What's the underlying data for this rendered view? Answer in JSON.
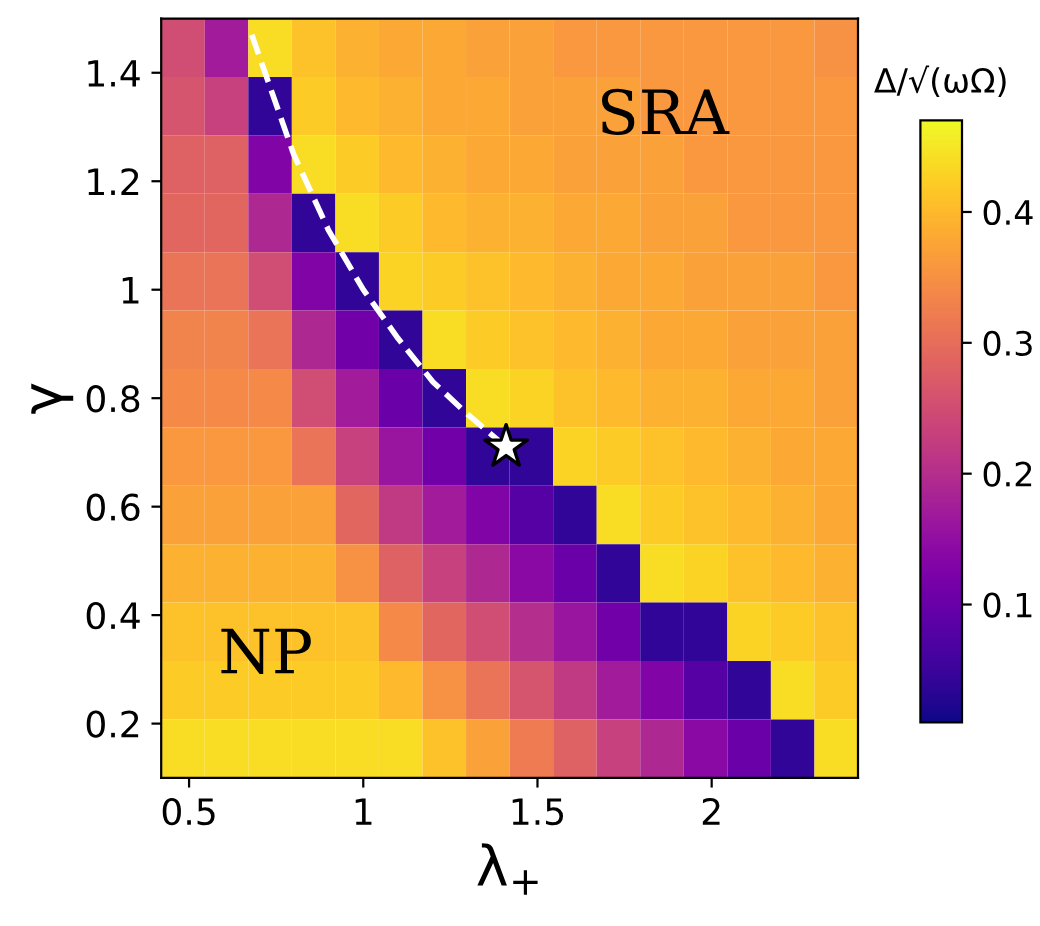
{
  "chart_data": {
    "type": "heatmap",
    "xlabel": "λ$_{+}$",
    "ylabel": "γ",
    "clabel": "Δ/√(ωΩ)",
    "xlim": [
      0.42,
      2.42
    ],
    "xticks": [
      0.5,
      1,
      1.5,
      2
    ],
    "ylim": [
      0.1,
      1.5
    ],
    "yticks": [
      0.2,
      0.4,
      0.6,
      0.8,
      1,
      1.2,
      1.4
    ],
    "clim": [
      0.01,
      0.47
    ],
    "cticks": [
      0.1,
      0.2,
      0.3,
      0.4
    ],
    "cells": [
      [
        0.25,
        0.17,
        0.44,
        0.41,
        0.39,
        0.38,
        0.38,
        0.37,
        0.37,
        0.36,
        0.36,
        0.36,
        0.36,
        0.36,
        0.36,
        0.35
      ],
      [
        0.26,
        0.23,
        0.04,
        0.42,
        0.4,
        0.39,
        0.38,
        0.38,
        0.37,
        0.37,
        0.37,
        0.36,
        0.36,
        0.36,
        0.36,
        0.36
      ],
      [
        0.28,
        0.28,
        0.13,
        0.44,
        0.42,
        0.4,
        0.39,
        0.38,
        0.38,
        0.37,
        0.37,
        0.37,
        0.36,
        0.36,
        0.36,
        0.36
      ],
      [
        0.29,
        0.29,
        0.19,
        0.04,
        0.44,
        0.42,
        0.4,
        0.39,
        0.39,
        0.38,
        0.38,
        0.37,
        0.37,
        0.36,
        0.36,
        0.36
      ],
      [
        0.31,
        0.31,
        0.25,
        0.13,
        0.04,
        0.43,
        0.42,
        0.41,
        0.4,
        0.39,
        0.38,
        0.38,
        0.37,
        0.37,
        0.37,
        0.36
      ],
      [
        0.33,
        0.33,
        0.31,
        0.19,
        0.11,
        0.04,
        0.44,
        0.42,
        0.41,
        0.4,
        0.39,
        0.38,
        0.38,
        0.37,
        0.37,
        0.37
      ],
      [
        0.34,
        0.34,
        0.34,
        0.25,
        0.17,
        0.1,
        0.04,
        0.44,
        0.43,
        0.41,
        0.4,
        0.39,
        0.39,
        0.38,
        0.38,
        0.37
      ],
      [
        0.36,
        0.36,
        0.36,
        0.31,
        0.23,
        0.16,
        0.11,
        0.04,
        0.04,
        0.43,
        0.42,
        0.41,
        0.4,
        0.39,
        0.38,
        0.38
      ],
      [
        0.37,
        0.37,
        0.37,
        0.37,
        0.29,
        0.22,
        0.17,
        0.13,
        0.08,
        0.04,
        0.44,
        0.42,
        0.41,
        0.4,
        0.39,
        0.38
      ],
      [
        0.39,
        0.39,
        0.39,
        0.39,
        0.35,
        0.28,
        0.23,
        0.19,
        0.14,
        0.1,
        0.04,
        0.44,
        0.43,
        0.41,
        0.4,
        0.39
      ],
      [
        0.41,
        0.41,
        0.41,
        0.41,
        0.41,
        0.34,
        0.29,
        0.25,
        0.2,
        0.16,
        0.11,
        0.04,
        0.04,
        0.43,
        0.42,
        0.41
      ],
      [
        0.42,
        0.42,
        0.42,
        0.42,
        0.42,
        0.4,
        0.35,
        0.31,
        0.26,
        0.22,
        0.17,
        0.13,
        0.08,
        0.04,
        0.44,
        0.42
      ],
      [
        0.44,
        0.44,
        0.44,
        0.44,
        0.44,
        0.44,
        0.41,
        0.37,
        0.32,
        0.28,
        0.23,
        0.19,
        0.14,
        0.1,
        0.04,
        0.44
      ]
    ],
    "series": [
      {
        "type": "line",
        "color": "#ffffff",
        "line_style": "dashed",
        "x": [
          0.68,
          0.8,
          0.9,
          1.0,
          1.1,
          1.2,
          1.3,
          1.41
        ],
        "values": [
          1.47,
          1.25,
          1.11,
          1.0,
          0.91,
          0.83,
          0.77,
          0.71
        ]
      },
      {
        "type": "scatter",
        "color": "#ffffff",
        "marker": "star",
        "x": [
          1.41
        ],
        "values": [
          0.71
        ]
      }
    ],
    "annotations": [
      "SRA",
      "NP"
    ]
  }
}
